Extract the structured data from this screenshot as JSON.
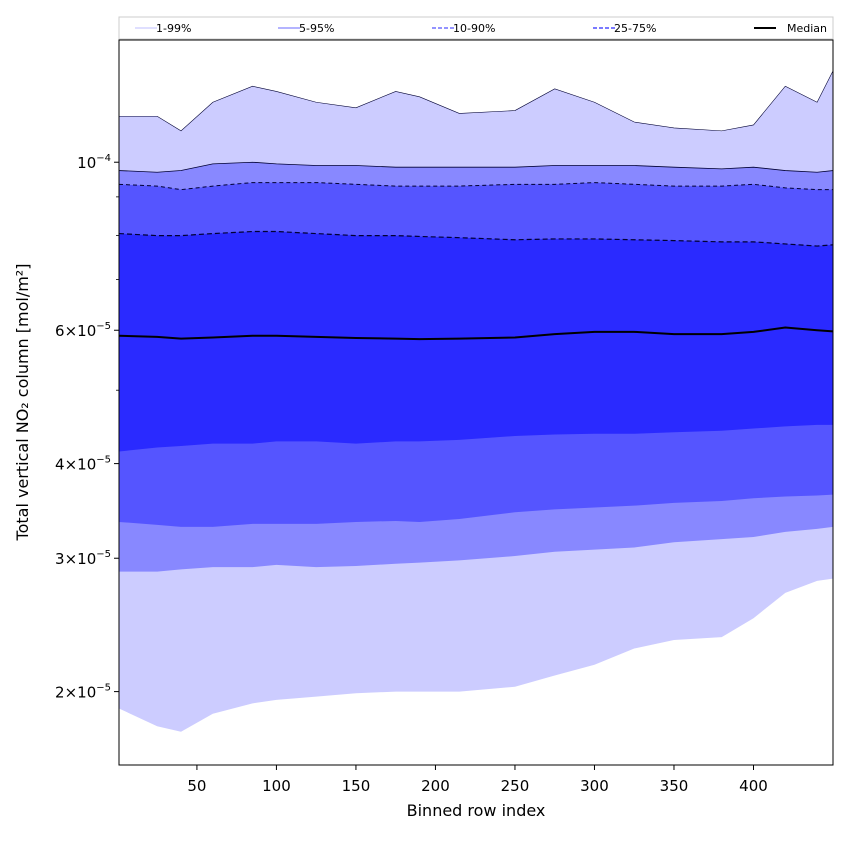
{
  "chart_data": {
    "type": "area",
    "title": "",
    "xlabel": "Binned row index",
    "ylabel": "Total vertical NO₂ column [mol/m²]",
    "xlim": [
      1,
      450
    ],
    "ylim": [
      1.6e-05,
      0.000145
    ],
    "y_scale": "log",
    "grid": false,
    "legend_position": "top",
    "x_ticks": [
      50,
      100,
      150,
      200,
      250,
      300,
      350,
      400
    ],
    "x_tick_labels": [
      "50",
      "100",
      "150",
      "200",
      "250",
      "300",
      "350",
      "400"
    ],
    "y_ticks": [
      2e-05,
      3e-05,
      4e-05,
      6e-05,
      0.0001
    ],
    "y_tick_labels": [
      {
        "base": "2×10",
        "exp": "−5"
      },
      {
        "base": "3×10",
        "exp": "−5"
      },
      {
        "base": "4×10",
        "exp": "−5"
      },
      {
        "base": "6×10",
        "exp": "−5"
      },
      {
        "base": "10",
        "exp": "−4"
      }
    ],
    "legend": [
      {
        "label": "1-99%",
        "color": "#ccccff",
        "line_style": "solid"
      },
      {
        "label": "5-95%",
        "color": "#8888ff",
        "line_style": "solid"
      },
      {
        "label": "10-90%",
        "color": "#5555ff",
        "line_style": "dashed"
      },
      {
        "label": "25-75%",
        "color": "#2a2aff",
        "line_style": "dashed"
      },
      {
        "label": "Median",
        "color": "#000000",
        "line_style": "solid"
      }
    ],
    "x": [
      1,
      25,
      40,
      60,
      85,
      100,
      125,
      150,
      175,
      190,
      215,
      250,
      275,
      300,
      325,
      350,
      380,
      400,
      420,
      440,
      450
    ],
    "series": [
      {
        "name": "1-99%",
        "fill": "#ccccff",
        "lower": [
          1.9e-05,
          1.8e-05,
          1.77e-05,
          1.87e-05,
          1.93e-05,
          1.95e-05,
          1.97e-05,
          1.99e-05,
          2e-05,
          2e-05,
          2e-05,
          2.03e-05,
          2.1e-05,
          2.17e-05,
          2.28e-05,
          2.34e-05,
          2.36e-05,
          2.5e-05,
          2.7e-05,
          2.8e-05,
          2.82e-05
        ],
        "upper": [
          0.000115,
          0.000115,
          0.00011,
          0.00012,
          0.000126,
          0.000124,
          0.00012,
          0.000118,
          0.000124,
          0.000122,
          0.000116,
          0.000117,
          0.000125,
          0.00012,
          0.000113,
          0.000111,
          0.00011,
          0.000112,
          0.000126,
          0.00012,
          0.000132
        ]
      },
      {
        "name": "5-95%",
        "fill": "#8888ff",
        "lower": [
          2.88e-05,
          2.88e-05,
          2.9e-05,
          2.92e-05,
          2.92e-05,
          2.94e-05,
          2.92e-05,
          2.93e-05,
          2.95e-05,
          2.96e-05,
          2.98e-05,
          3.02e-05,
          3.06e-05,
          3.08e-05,
          3.1e-05,
          3.15e-05,
          3.18e-05,
          3.2e-05,
          3.25e-05,
          3.28e-05,
          3.3e-05
        ],
        "upper": [
          9.75e-05,
          9.7e-05,
          9.75e-05,
          9.95e-05,
          0.0001,
          9.95e-05,
          9.9e-05,
          9.9e-05,
          9.85e-05,
          9.85e-05,
          9.85e-05,
          9.85e-05,
          9.9e-05,
          9.9e-05,
          9.9e-05,
          9.85e-05,
          9.8e-05,
          9.85e-05,
          9.75e-05,
          9.7e-05,
          9.75e-05
        ]
      },
      {
        "name": "10-90%",
        "fill": "#5555ff",
        "lower": [
          3.35e-05,
          3.32e-05,
          3.3e-05,
          3.3e-05,
          3.33e-05,
          3.33e-05,
          3.33e-05,
          3.35e-05,
          3.36e-05,
          3.35e-05,
          3.38e-05,
          3.45e-05,
          3.48e-05,
          3.5e-05,
          3.52e-05,
          3.55e-05,
          3.57e-05,
          3.6e-05,
          3.62e-05,
          3.63e-05,
          3.64e-05
        ],
        "upper": [
          9.35e-05,
          9.3e-05,
          9.2e-05,
          9.3e-05,
          9.4e-05,
          9.4e-05,
          9.4e-05,
          9.35e-05,
          9.3e-05,
          9.3e-05,
          9.3e-05,
          9.35e-05,
          9.35e-05,
          9.4e-05,
          9.35e-05,
          9.3e-05,
          9.3e-05,
          9.35e-05,
          9.25e-05,
          9.2e-05,
          9.2e-05
        ]
      },
      {
        "name": "25-75%",
        "fill": "#2a2aff",
        "lower": [
          4.15e-05,
          4.2e-05,
          4.22e-05,
          4.25e-05,
          4.25e-05,
          4.28e-05,
          4.28e-05,
          4.25e-05,
          4.28e-05,
          4.28e-05,
          4.3e-05,
          4.35e-05,
          4.37e-05,
          4.38e-05,
          4.38e-05,
          4.4e-05,
          4.42e-05,
          4.45e-05,
          4.48e-05,
          4.5e-05,
          4.5e-05
        ],
        "upper": [
          8.05e-05,
          8e-05,
          8e-05,
          8.05e-05,
          8.1e-05,
          8.1e-05,
          8.05e-05,
          8e-05,
          8e-05,
          7.98e-05,
          7.95e-05,
          7.9e-05,
          7.92e-05,
          7.92e-05,
          7.9e-05,
          7.88e-05,
          7.85e-05,
          7.85e-05,
          7.8e-05,
          7.75e-05,
          7.78e-05
        ]
      },
      {
        "name": "Median",
        "stroke": "#000000",
        "values": [
          5.9e-05,
          5.88e-05,
          5.85e-05,
          5.87e-05,
          5.9e-05,
          5.9e-05,
          5.88e-05,
          5.86e-05,
          5.85e-05,
          5.84e-05,
          5.85e-05,
          5.87e-05,
          5.93e-05,
          5.97e-05,
          5.97e-05,
          5.93e-05,
          5.93e-05,
          5.97e-05,
          6.05e-05,
          6e-05,
          5.98e-05
        ]
      }
    ]
  }
}
